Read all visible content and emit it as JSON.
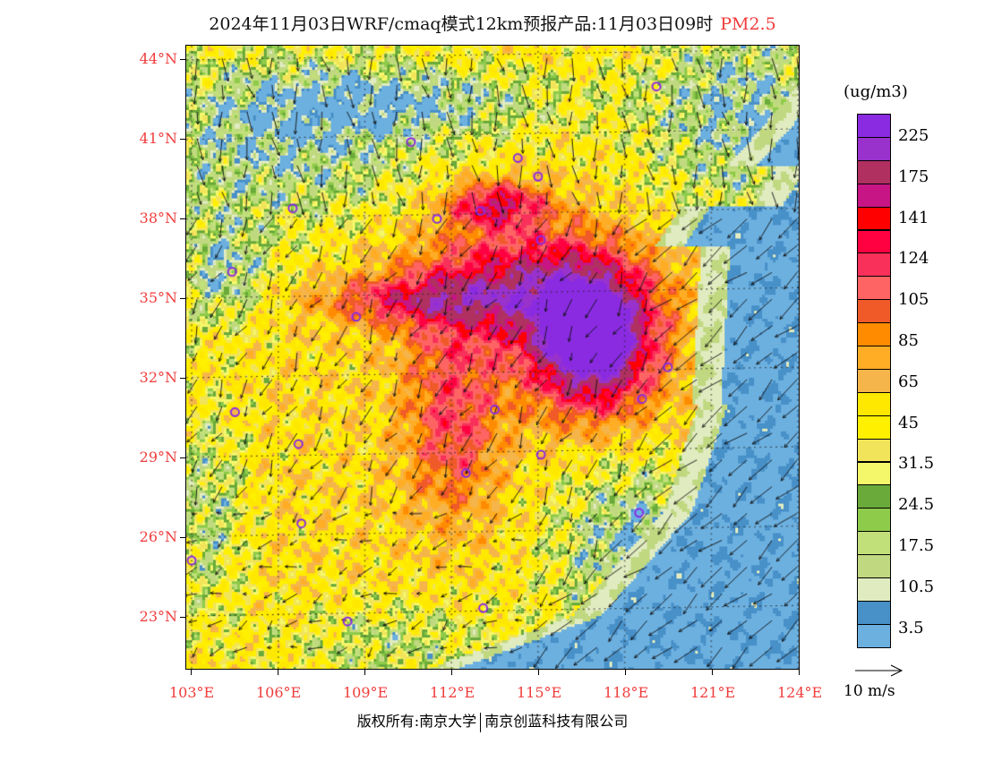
{
  "title": {
    "text": "2024年11月03日WRF/cmaq模式12km预报产品:11月03日09时",
    "variable": "PM2.5"
  },
  "map": {
    "lon_range": [
      103,
      124
    ],
    "lat_range": [
      21,
      44.5
    ],
    "lat_labels": [
      {
        "v": 44,
        "t": "44°N"
      },
      {
        "v": 41,
        "t": "41°N"
      },
      {
        "v": 38,
        "t": "38°N"
      },
      {
        "v": 35,
        "t": "35°N"
      },
      {
        "v": 32,
        "t": "32°N"
      },
      {
        "v": 29,
        "t": "29°N"
      },
      {
        "v": 26,
        "t": "26°N"
      },
      {
        "v": 23,
        "t": "23°N"
      }
    ],
    "lon_labels": [
      {
        "v": 103,
        "t": "103°E"
      },
      {
        "v": 106,
        "t": "106°E"
      },
      {
        "v": 109,
        "t": "109°E"
      },
      {
        "v": 112,
        "t": "112°E"
      },
      {
        "v": 115,
        "t": "115°E"
      },
      {
        "v": 118,
        "t": "118°E"
      },
      {
        "v": 121,
        "t": "121°E"
      },
      {
        "v": 124,
        "t": "124°E"
      }
    ],
    "stations": [
      [
        119.1,
        43.0
      ],
      [
        110.6,
        40.9
      ],
      [
        114.3,
        40.3
      ],
      [
        115.0,
        39.6
      ],
      [
        106.5,
        38.4
      ],
      [
        111.5,
        38.0
      ],
      [
        113.0,
        38.3
      ],
      [
        115.1,
        37.2
      ],
      [
        104.4,
        36.0
      ],
      [
        112.6,
        34.9
      ],
      [
        108.7,
        34.3
      ],
      [
        117.2,
        32.7
      ],
      [
        115.9,
        32.4
      ],
      [
        119.5,
        32.4
      ],
      [
        118.6,
        31.2
      ],
      [
        104.5,
        30.7
      ],
      [
        113.5,
        30.8
      ],
      [
        106.7,
        29.5
      ],
      [
        115.1,
        29.1
      ],
      [
        112.5,
        28.4
      ],
      [
        106.8,
        26.5
      ],
      [
        118.5,
        26.9
      ],
      [
        103.0,
        25.1
      ],
      [
        113.1,
        23.3
      ],
      [
        108.4,
        22.8
      ]
    ],
    "station_color": "#8a2be2"
  },
  "legend": {
    "unit": "(ug/m3)",
    "colors": [
      "#8a2be2",
      "#9932cc",
      "#b03060",
      "#c71585",
      "#ff0000",
      "#ff0040",
      "#f8305a",
      "#ff6464",
      "#f05a28",
      "#ff8c00",
      "#ffad24",
      "#f5b54a",
      "#ffe800",
      "#fff000",
      "#f2e45a",
      "#f5f76a",
      "#6aaa3a",
      "#8ecb4a",
      "#c2e07a",
      "#c0d880",
      "#e0ebc0",
      "#4890c8",
      "#6cb0e0",
      "#a2daf6",
      "#d8eefa",
      "#ffffff"
    ],
    "labels": [
      "225",
      "175",
      "141",
      "124",
      "105",
      "85",
      "65",
      "45",
      "31.5",
      "24.5",
      "17.5",
      "10.5",
      "3.5"
    ],
    "wind_ref": "10 m/s"
  },
  "footer": {
    "left": "版权所有:南京大学",
    "right": "南京创蓝科技有限公司"
  }
}
